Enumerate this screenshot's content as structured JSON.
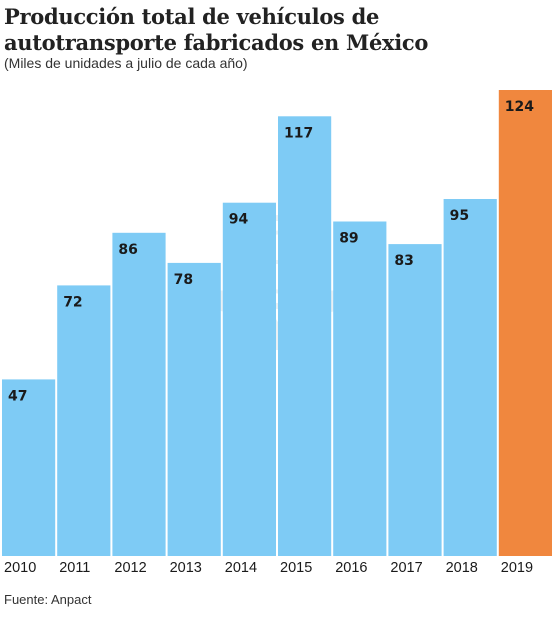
{
  "chart_data": {
    "type": "bar",
    "title": "Producción total de vehículos de autotransporte fabricados en México",
    "subtitle": "(Miles de unidades a julio de cada año)",
    "categories": [
      "2010",
      "2011",
      "2012",
      "2013",
      "2014",
      "2015",
      "2016",
      "2017",
      "2018",
      "2019"
    ],
    "values": [
      47,
      72,
      86,
      78,
      94,
      117,
      89,
      83,
      95,
      124
    ],
    "ylim": [
      0,
      124
    ],
    "xlabel": "",
    "ylabel": "",
    "grid": false,
    "colors": {
      "default": "#7ecbf5",
      "highlight": "#f0873e",
      "highlight_category": "2019"
    }
  },
  "source": "Fuente: Anpact"
}
